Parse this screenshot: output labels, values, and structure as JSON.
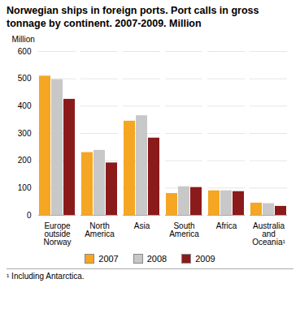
{
  "chart_data": {
    "type": "bar",
    "title": "Norwegian ships in foreign ports. Port calls in gross\ntonnage by continent. 2007-2009. Million",
    "ylabel": "Million",
    "categories": [
      "Europe\noutside\nNorway",
      "North\nAmerica",
      "Asia",
      "South\nAmerica",
      "Africa",
      "Australia\nand\nOceania¹"
    ],
    "series": [
      {
        "name": "2007",
        "color": "#F5A623",
        "values": [
          510,
          230,
          345,
          80,
          90,
          45
        ]
      },
      {
        "name": "2008",
        "color": "#C8C8C8",
        "values": [
          497,
          238,
          365,
          105,
          90,
          43
        ]
      },
      {
        "name": "2009",
        "color": "#8B1A1A",
        "values": [
          425,
          192,
          283,
          102,
          87,
          33
        ]
      }
    ],
    "ylim": [
      0,
      600
    ],
    "yticks": [
      0,
      100,
      200,
      300,
      400,
      500,
      600
    ],
    "grid": true,
    "legend": "bottom",
    "annotations": [
      "¹ Including Antarctica."
    ]
  }
}
